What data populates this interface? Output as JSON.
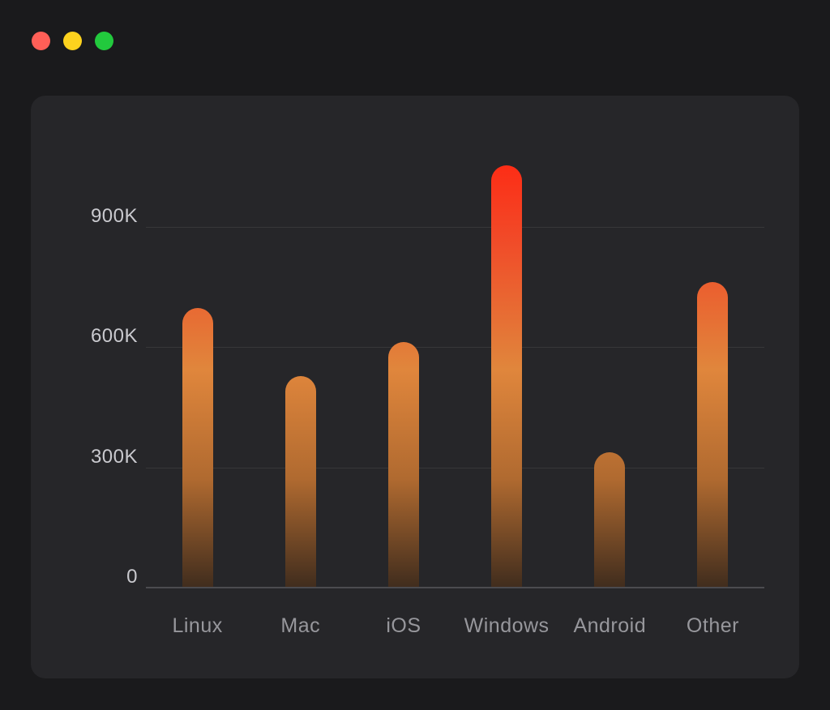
{
  "window": {
    "controls": [
      {
        "name": "close",
        "color": "#ff5f57"
      },
      {
        "name": "minimize",
        "color": "#fdd21e"
      },
      {
        "name": "zoom",
        "color": "#22c93d"
      }
    ]
  },
  "chart_data": {
    "type": "bar",
    "title": "",
    "categories": [
      "Linux",
      "Mac",
      "iOS",
      "Windows",
      "Android",
      "Other"
    ],
    "values": [
      700,
      530,
      615,
      1055,
      340,
      765
    ],
    "values_unit": "thousands",
    "xlabel": "",
    "ylabel": "",
    "ylim": [
      0,
      1100
    ],
    "yticks": [
      {
        "value": 0,
        "label": "0"
      },
      {
        "value": 300,
        "label": "300K"
      },
      {
        "value": 600,
        "label": "600K"
      },
      {
        "value": 900,
        "label": "900K"
      }
    ],
    "grid": "horizontal",
    "legend": "none",
    "bar_gradient": [
      "#ff2712",
      "#f14a28",
      "#e0863c",
      "#b06a30",
      "#3f2c1d"
    ]
  }
}
